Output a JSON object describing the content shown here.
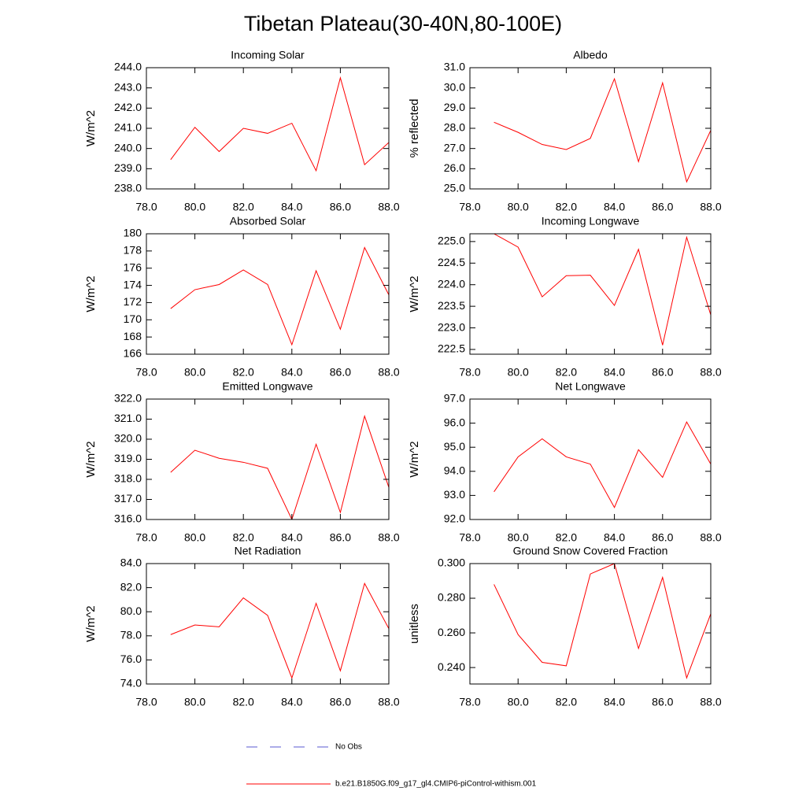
{
  "title": "Tibetan Plateau(30-40N,80-100E)",
  "legend": [
    {
      "label": "No Obs",
      "color": "#5a5ad0",
      "dash": true
    },
    {
      "label": "b.e21.B1850G.f09_g17_gl4.CMIP6-piControl-withism.001",
      "color": "#ff0000",
      "dash": false
    }
  ],
  "chart_data": [
    {
      "type": "line",
      "title": "Incoming Solar",
      "ylabel": "W/m^2",
      "color": "#ff0000",
      "x": [
        79,
        80,
        81,
        82,
        83,
        84,
        85,
        86,
        87,
        88
      ],
      "values": [
        239.45,
        241.05,
        239.85,
        241.0,
        240.75,
        241.25,
        238.9,
        243.5,
        239.2,
        240.3
      ],
      "xlim": [
        78,
        88
      ],
      "xticks": [
        {
          "value": 78,
          "label": "78.0"
        },
        {
          "value": 80,
          "label": "80.0"
        },
        {
          "value": 82,
          "label": "82.0"
        },
        {
          "value": 84,
          "label": "84.0"
        },
        {
          "value": 86,
          "label": "86.0"
        },
        {
          "value": 88,
          "label": "88.0"
        }
      ],
      "ylim": [
        238,
        244
      ],
      "yticks": [
        {
          "value": 238,
          "label": "238.0"
        },
        {
          "value": 239,
          "label": "239.0"
        },
        {
          "value": 240,
          "label": "240.0"
        },
        {
          "value": 241,
          "label": "241.0"
        },
        {
          "value": 242,
          "label": "242.0"
        },
        {
          "value": 243,
          "label": "243.0"
        },
        {
          "value": 244,
          "label": "244.0"
        }
      ]
    },
    {
      "type": "line",
      "title": "Albedo",
      "ylabel": "% reflected",
      "color": "#ff0000",
      "x": [
        79,
        80,
        81,
        82,
        83,
        84,
        85,
        86,
        87,
        88
      ],
      "values": [
        28.3,
        27.8,
        27.2,
        26.95,
        27.5,
        30.45,
        26.35,
        30.25,
        25.35,
        27.9
      ],
      "xlim": [
        78,
        88
      ],
      "xticks": [
        {
          "value": 78,
          "label": "78.0"
        },
        {
          "value": 80,
          "label": "80.0"
        },
        {
          "value": 82,
          "label": "82.0"
        },
        {
          "value": 84,
          "label": "84.0"
        },
        {
          "value": 86,
          "label": "86.0"
        },
        {
          "value": 88,
          "label": "88.0"
        }
      ],
      "ylim": [
        25,
        31
      ],
      "yticks": [
        {
          "value": 25,
          "label": "25.0"
        },
        {
          "value": 26,
          "label": "26.0"
        },
        {
          "value": 27,
          "label": "27.0"
        },
        {
          "value": 28,
          "label": "28.0"
        },
        {
          "value": 29,
          "label": "29.0"
        },
        {
          "value": 30,
          "label": "30.0"
        },
        {
          "value": 31,
          "label": "31.0"
        }
      ]
    },
    {
      "type": "line",
      "title": "Absorbed Solar",
      "ylabel": "W/m^2",
      "color": "#ff0000",
      "x": [
        79,
        80,
        81,
        82,
        83,
        84,
        85,
        86,
        87,
        88
      ],
      "values": [
        171.3,
        173.5,
        174.1,
        175.8,
        174.1,
        167.1,
        175.7,
        168.9,
        178.4,
        172.9
      ],
      "xlim": [
        78,
        88
      ],
      "xticks": [
        {
          "value": 78,
          "label": "78.0"
        },
        {
          "value": 80,
          "label": "80.0"
        },
        {
          "value": 82,
          "label": "82.0"
        },
        {
          "value": 84,
          "label": "84.0"
        },
        {
          "value": 86,
          "label": "86.0"
        },
        {
          "value": 88,
          "label": "88.0"
        }
      ],
      "ylim": [
        166,
        180
      ],
      "yticks": [
        166,
        168,
        170,
        172,
        174,
        176,
        178,
        180
      ]
    },
    {
      "type": "line",
      "title": "Incoming Longwave",
      "ylabel": "W/m^2",
      "color": "#ff0000",
      "x": [
        79,
        80,
        81,
        82,
        83,
        84,
        85,
        86,
        87,
        88
      ],
      "values": [
        225.18,
        224.87,
        223.72,
        224.21,
        224.22,
        223.52,
        224.82,
        222.6,
        225.1,
        223.3
      ],
      "xlim": [
        78,
        88
      ],
      "xticks": [
        {
          "value": 78,
          "label": "78.0"
        },
        {
          "value": 80,
          "label": "80.0"
        },
        {
          "value": 82,
          "label": "82.0"
        },
        {
          "value": 84,
          "label": "84.0"
        },
        {
          "value": 86,
          "label": "86.0"
        },
        {
          "value": 88,
          "label": "88.0"
        }
      ],
      "ylim": [
        222.39,
        225.18
      ],
      "yticks": [
        222.5,
        {
          "value": 223,
          "label": "223.0"
        },
        223.5,
        {
          "value": 224,
          "label": "224.0"
        },
        224.5,
        {
          "value": 225,
          "label": "225.0"
        }
      ]
    },
    {
      "type": "line",
      "title": "Emitted Longwave",
      "ylabel": "W/m^2",
      "color": "#ff0000",
      "x": [
        79,
        80,
        81,
        82,
        83,
        84,
        85,
        86,
        87,
        88
      ],
      "values": [
        318.35,
        319.45,
        319.05,
        318.85,
        318.55,
        316.0,
        319.75,
        316.35,
        321.15,
        317.6
      ],
      "xlim": [
        78,
        88
      ],
      "xticks": [
        {
          "value": 78,
          "label": "78.0"
        },
        {
          "value": 80,
          "label": "80.0"
        },
        {
          "value": 82,
          "label": "82.0"
        },
        {
          "value": 84,
          "label": "84.0"
        },
        {
          "value": 86,
          "label": "86.0"
        },
        {
          "value": 88,
          "label": "88.0"
        }
      ],
      "ylim": [
        316,
        322
      ],
      "yticks": [
        {
          "value": 316,
          "label": "316.0"
        },
        {
          "value": 317,
          "label": "317.0"
        },
        {
          "value": 318,
          "label": "318.0"
        },
        {
          "value": 319,
          "label": "319.0"
        },
        {
          "value": 320,
          "label": "320.0"
        },
        {
          "value": 321,
          "label": "321.0"
        },
        {
          "value": 322,
          "label": "322.0"
        }
      ]
    },
    {
      "type": "line",
      "title": "Net Longwave",
      "ylabel": "W/m^2",
      "color": "#ff0000",
      "x": [
        79,
        80,
        81,
        82,
        83,
        84,
        85,
        86,
        87,
        88
      ],
      "values": [
        93.15,
        94.6,
        95.35,
        94.6,
        94.3,
        92.5,
        94.9,
        93.75,
        96.05,
        94.3
      ],
      "xlim": [
        78,
        88
      ],
      "xticks": [
        {
          "value": 78,
          "label": "78.0"
        },
        {
          "value": 80,
          "label": "80.0"
        },
        {
          "value": 82,
          "label": "82.0"
        },
        {
          "value": 84,
          "label": "84.0"
        },
        {
          "value": 86,
          "label": "86.0"
        },
        {
          "value": 88,
          "label": "88.0"
        }
      ],
      "ylim": [
        92,
        97
      ],
      "yticks": [
        {
          "value": 92,
          "label": "92.0"
        },
        {
          "value": 93,
          "label": "93.0"
        },
        {
          "value": 94,
          "label": "94.0"
        },
        {
          "value": 95,
          "label": "95.0"
        },
        {
          "value": 96,
          "label": "96.0"
        },
        {
          "value": 97,
          "label": "97.0"
        }
      ]
    },
    {
      "type": "line",
      "title": "Net Radiation",
      "ylabel": "W/m^2",
      "color": "#ff0000",
      "x": [
        79,
        80,
        81,
        82,
        83,
        84,
        85,
        86,
        87,
        88
      ],
      "values": [
        78.1,
        78.9,
        78.75,
        81.15,
        79.7,
        74.5,
        80.7,
        75.1,
        82.35,
        78.6
      ],
      "xlim": [
        78,
        88
      ],
      "xticks": [
        {
          "value": 78,
          "label": "78.0"
        },
        {
          "value": 80,
          "label": "80.0"
        },
        {
          "value": 82,
          "label": "82.0"
        },
        {
          "value": 84,
          "label": "84.0"
        },
        {
          "value": 86,
          "label": "86.0"
        },
        {
          "value": 88,
          "label": "88.0"
        }
      ],
      "ylim": [
        74,
        84
      ],
      "yticks": [
        {
          "value": 74,
          "label": "74.0"
        },
        {
          "value": 76,
          "label": "76.0"
        },
        {
          "value": 78,
          "label": "78.0"
        },
        {
          "value": 80,
          "label": "80.0"
        },
        {
          "value": 82,
          "label": "82.0"
        },
        {
          "value": 84,
          "label": "84.0"
        }
      ]
    },
    {
      "type": "line",
      "title": "Ground Snow Covered Fraction",
      "ylabel": "unitless",
      "color": "#ff0000",
      "x": [
        79,
        80,
        81,
        82,
        83,
        84,
        85,
        86,
        87,
        88
      ],
      "values": [
        0.288,
        0.259,
        0.243,
        0.241,
        0.294,
        0.3,
        0.251,
        0.292,
        0.234,
        0.271
      ],
      "xlim": [
        78,
        88
      ],
      "xticks": [
        {
          "value": 78,
          "label": "78.0"
        },
        {
          "value": 80,
          "label": "80.0"
        },
        {
          "value": 82,
          "label": "82.0"
        },
        {
          "value": 84,
          "label": "84.0"
        },
        {
          "value": 86,
          "label": "86.0"
        },
        {
          "value": 88,
          "label": "88.0"
        }
      ],
      "ylim": [
        0.2305,
        0.3
      ],
      "yticks": [
        {
          "value": 0.24,
          "label": "0.240"
        },
        {
          "value": 0.26,
          "label": "0.260"
        },
        {
          "value": 0.28,
          "label": "0.280"
        },
        {
          "value": 0.3,
          "label": "0.300"
        }
      ]
    }
  ]
}
